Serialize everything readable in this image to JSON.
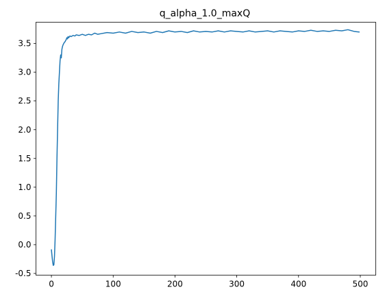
{
  "chart_data": {
    "type": "line",
    "title": "q_alpha_1.0_maxQ",
    "xlabel": "",
    "ylabel": "",
    "xlim": [
      -25,
      525
    ],
    "ylim": [
      -0.53,
      3.87
    ],
    "x_ticks": [
      0,
      100,
      200,
      300,
      400,
      500
    ],
    "y_ticks": [
      -0.5,
      0.0,
      0.5,
      1.0,
      1.5,
      2.0,
      2.5,
      3.0,
      3.5
    ],
    "grid": false,
    "legend": "none",
    "line_color": "#1f77b4",
    "series": [
      {
        "x": [
          0,
          1,
          2,
          3,
          4,
          5,
          6,
          7,
          8,
          9,
          10,
          11,
          12,
          13,
          14,
          15,
          16,
          17,
          18,
          19,
          20,
          21,
          22,
          23,
          24,
          25,
          26,
          27,
          28,
          30,
          32,
          35,
          38,
          40,
          45,
          50,
          55,
          60,
          65,
          70,
          75,
          80,
          90,
          100,
          110,
          120,
          130,
          140,
          150,
          160,
          170,
          180,
          190,
          200,
          210,
          220,
          230,
          240,
          250,
          260,
          270,
          280,
          290,
          300,
          310,
          320,
          330,
          340,
          350,
          360,
          370,
          380,
          390,
          400,
          410,
          420,
          430,
          440,
          450,
          460,
          470,
          480,
          490,
          498
        ],
        "y": [
          -0.09,
          -0.2,
          -0.3,
          -0.36,
          -0.35,
          -0.2,
          0.1,
          0.5,
          0.9,
          1.5,
          2.0,
          2.5,
          2.8,
          3.0,
          3.2,
          3.3,
          3.25,
          3.4,
          3.45,
          3.48,
          3.5,
          3.52,
          3.53,
          3.55,
          3.57,
          3.6,
          3.58,
          3.62,
          3.6,
          3.63,
          3.62,
          3.64,
          3.63,
          3.65,
          3.64,
          3.66,
          3.64,
          3.66,
          3.65,
          3.68,
          3.66,
          3.67,
          3.69,
          3.68,
          3.7,
          3.68,
          3.71,
          3.69,
          3.7,
          3.68,
          3.71,
          3.69,
          3.72,
          3.7,
          3.71,
          3.69,
          3.72,
          3.7,
          3.71,
          3.7,
          3.72,
          3.7,
          3.72,
          3.71,
          3.7,
          3.72,
          3.7,
          3.71,
          3.72,
          3.7,
          3.72,
          3.71,
          3.7,
          3.72,
          3.71,
          3.73,
          3.71,
          3.72,
          3.71,
          3.73,
          3.72,
          3.74,
          3.71,
          3.7
        ]
      }
    ]
  }
}
